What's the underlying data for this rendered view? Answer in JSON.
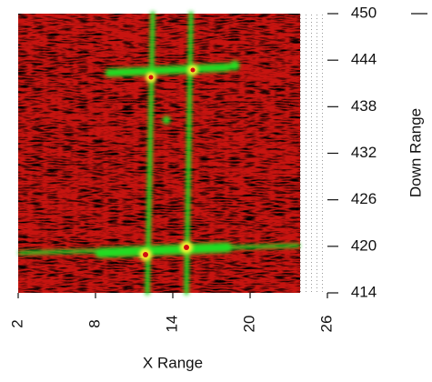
{
  "chart_data": {
    "type": "image",
    "x_label": "X Range",
    "y_label": "Down Range",
    "xlim": [
      2,
      26
    ],
    "xticks": [
      2,
      8,
      14,
      20,
      26
    ],
    "ylim": [
      414,
      450
    ],
    "yticks": [
      414,
      420,
      426,
      432,
      438,
      444,
      450
    ]
  }
}
